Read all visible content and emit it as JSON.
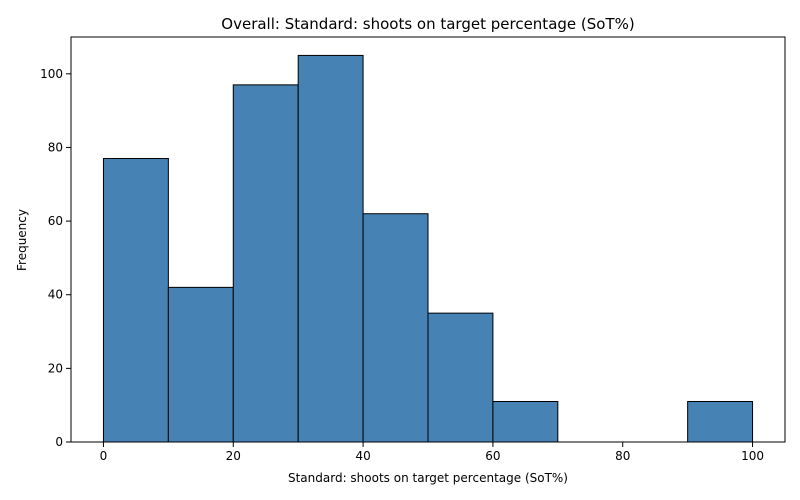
{
  "chart_data": {
    "type": "bar",
    "title": "Overall: Standard: shoots on target percentage (SoT%)",
    "xlabel": "Standard: shoots on target percentage (SoT%)",
    "ylabel": "Frequency",
    "bins": [
      {
        "x0": 0,
        "x1": 10,
        "count": 77
      },
      {
        "x0": 10,
        "x1": 20,
        "count": 42
      },
      {
        "x0": 20,
        "x1": 30,
        "count": 97
      },
      {
        "x0": 30,
        "x1": 40,
        "count": 105
      },
      {
        "x0": 40,
        "x1": 50,
        "count": 62
      },
      {
        "x0": 50,
        "x1": 60,
        "count": 35
      },
      {
        "x0": 60,
        "x1": 70,
        "count": 11
      },
      {
        "x0": 70,
        "x1": 80,
        "count": 0
      },
      {
        "x0": 80,
        "x1": 90,
        "count": 0
      },
      {
        "x0": 90,
        "x1": 100,
        "count": 11
      }
    ],
    "xlim": [
      -5,
      105
    ],
    "ylim": [
      0,
      110
    ],
    "xticks": [
      0,
      20,
      40,
      60,
      80,
      100
    ],
    "yticks": [
      0,
      20,
      40,
      60,
      80,
      100
    ],
    "bar_color": "#4682b4",
    "edge_color": "#000000",
    "grid": false,
    "legend": false
  }
}
